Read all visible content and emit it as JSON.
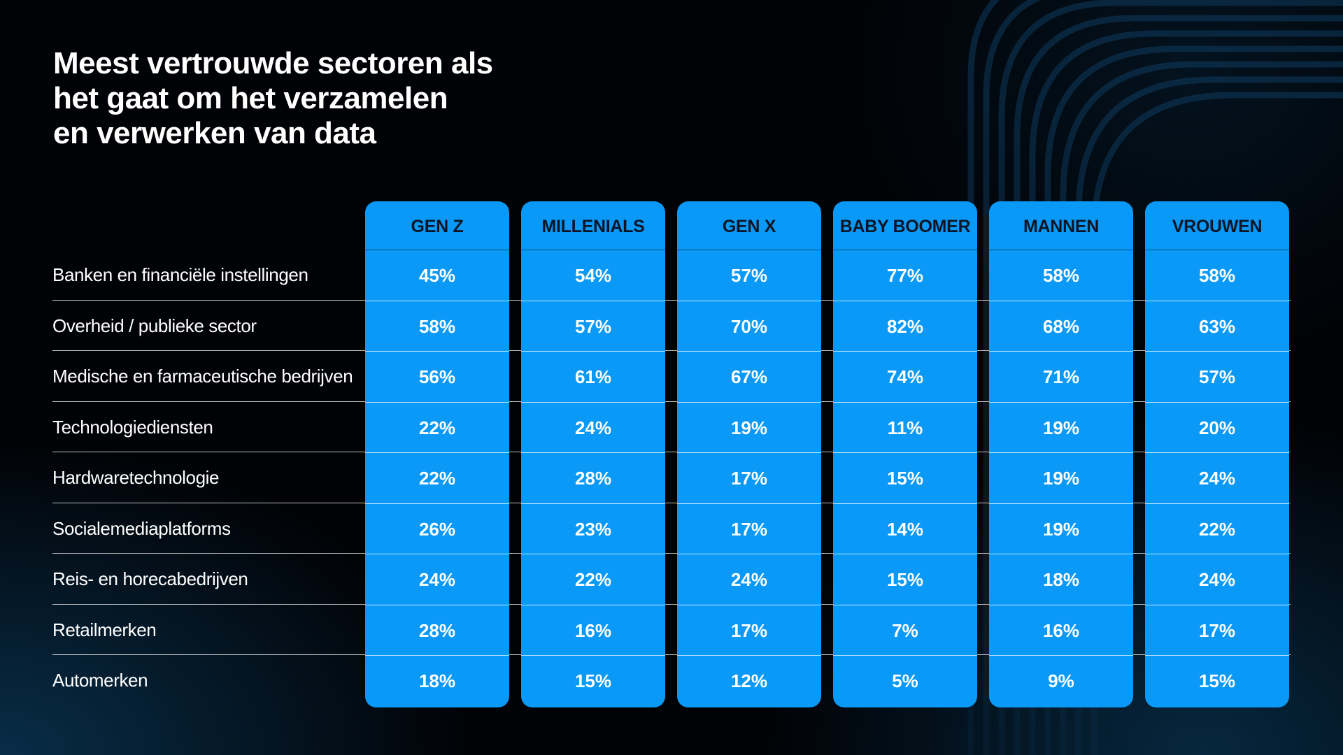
{
  "title_lines": [
    "Meest vertrouwde sectoren als",
    "het gaat om het verzamelen",
    "en verwerken van data"
  ],
  "chart_data": {
    "type": "table",
    "title": "Meest vertrouwde sectoren als het gaat om het verzamelen en verwerken van data",
    "columns": [
      "GEN Z",
      "MILLENIALS",
      "GEN X",
      "BABY BOOMER",
      "MANNEN",
      "VROUWEN"
    ],
    "rows": [
      "Banken en financiële instellingen",
      "Overheid / publieke sector",
      "Medische en farmaceutische bedrijven",
      "Technologiediensten",
      "Hardwaretechnologie",
      "Socialemediaplatforms",
      "Reis- en horecabedrijven",
      "Retailmerken",
      "Automerken"
    ],
    "values": [
      [
        "45%",
        "54%",
        "57%",
        "77%",
        "58%",
        "58%"
      ],
      [
        "58%",
        "57%",
        "70%",
        "82%",
        "68%",
        "63%"
      ],
      [
        "56%",
        "61%",
        "67%",
        "74%",
        "71%",
        "57%"
      ],
      [
        "22%",
        "24%",
        "19%",
        "11%",
        "19%",
        "20%"
      ],
      [
        "22%",
        "28%",
        "17%",
        "15%",
        "19%",
        "24%"
      ],
      [
        "26%",
        "23%",
        "17%",
        "14%",
        "19%",
        "22%"
      ],
      [
        "24%",
        "22%",
        "24%",
        "15%",
        "18%",
        "24%"
      ],
      [
        "28%",
        "16%",
        "17%",
        "7%",
        "16%",
        "17%"
      ],
      [
        "18%",
        "15%",
        "12%",
        "5%",
        "9%",
        "15%"
      ]
    ]
  },
  "colors": {
    "background": "#010205",
    "column_fill": "#0a99f6",
    "header_text": "#0b1525",
    "text": "#ffffff"
  }
}
